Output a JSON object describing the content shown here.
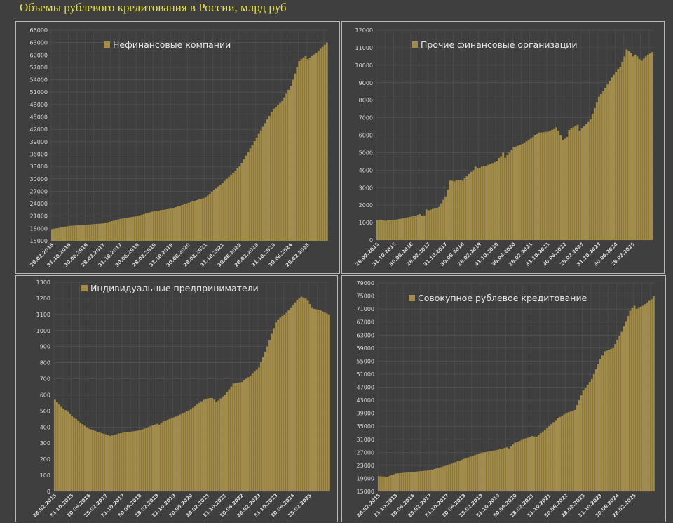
{
  "title": "Объемы рублевого кредитования в России, млрд руб",
  "colors": {
    "bar": "#a28c48",
    "title": "#e4e23c",
    "background": "#3f3f3f",
    "grid": "#545454"
  },
  "chart_data": [
    {
      "type": "bar",
      "legend": "Нефинансовые компании",
      "legend_position": "top-left",
      "ylim": [
        15000,
        66000
      ],
      "yticks": [
        15000,
        18000,
        21000,
        24000,
        27000,
        30000,
        33000,
        36000,
        39000,
        42000,
        45000,
        48000,
        51000,
        54000,
        57000,
        60000,
        63000,
        66000
      ],
      "xtick_labels": [
        "28.02.2015",
        "31.10.2015",
        "30.06.2016",
        "28.02.2017",
        "31.10.2017",
        "30.06.2018",
        "28.02.2019",
        "31.10.2019",
        "30.06.2020",
        "28.02.2021",
        "31.10.2021",
        "30.06.2022",
        "28.02.2023",
        "31.10.2023",
        "30.06.2024",
        "28.02.2025"
      ],
      "xtick_every_months": 8,
      "values": [
        17800,
        17900,
        18000,
        18100,
        18200,
        18300,
        18400,
        18500,
        18600,
        18640,
        18680,
        18720,
        18760,
        18800,
        18840,
        18870,
        18900,
        18940,
        18970,
        19010,
        19050,
        19090,
        19120,
        19160,
        19200,
        19340,
        19480,
        19620,
        19750,
        19890,
        20020,
        20160,
        20300,
        20390,
        20480,
        20560,
        20650,
        20740,
        20820,
        20910,
        21000,
        21150,
        21300,
        21450,
        21600,
        21750,
        21900,
        22050,
        22200,
        22280,
        22350,
        22430,
        22500,
        22580,
        22650,
        22730,
        22800,
        22980,
        23150,
        23330,
        23500,
        23680,
        23850,
        24030,
        24200,
        24360,
        24530,
        24690,
        24850,
        25010,
        25180,
        25340,
        25500,
        25940,
        26380,
        26810,
        27250,
        27690,
        28130,
        28560,
        29000,
        29500,
        30000,
        30500,
        31000,
        31500,
        32000,
        32500,
        33000,
        33880,
        34750,
        35630,
        36500,
        37380,
        38250,
        39130,
        40000,
        40880,
        41750,
        42630,
        43500,
        44380,
        45250,
        46130,
        47000,
        47450,
        47900,
        48350,
        48800,
        49730,
        50650,
        51580,
        52500,
        54000,
        55500,
        57000,
        58500,
        59000,
        59400,
        59700,
        59000,
        59380,
        59750,
        60130,
        60500,
        61000,
        61500,
        62000,
        62500,
        63000
      ]
    },
    {
      "type": "bar",
      "legend": "Прочие финансовые организации",
      "legend_position": "top-left",
      "ylim": [
        0,
        12000
      ],
      "yticks": [
        0,
        1000,
        2000,
        3000,
        4000,
        5000,
        6000,
        7000,
        8000,
        9000,
        10000,
        11000,
        12000
      ],
      "xtick_labels": [
        "28.02.2015",
        "31.10.2015",
        "30.06.2016",
        "28.02.2017",
        "31.10.2017",
        "30.06.2018",
        "28.02.2019",
        "31.10.2019",
        "30.06.2020",
        "28.02.2021",
        "31.10.2021",
        "30.06.2022",
        "28.02.2023",
        "31.10.2023",
        "30.06.2024",
        "28.02.2025"
      ],
      "xtick_every_months": 8,
      "values": [
        1150,
        1160,
        1140,
        1120,
        1100,
        1130,
        1140,
        1150,
        1150,
        1170,
        1200,
        1220,
        1240,
        1270,
        1300,
        1320,
        1350,
        1400,
        1380,
        1450,
        1480,
        1400,
        1420,
        1750,
        1700,
        1740,
        1780,
        1810,
        1850,
        1900,
        2100,
        2300,
        2500,
        2900,
        3400,
        3400,
        3350,
        3450,
        3450,
        3420,
        3400,
        3530,
        3650,
        3780,
        3900,
        4000,
        4200,
        4100,
        4100,
        4200,
        4250,
        4250,
        4300,
        4350,
        4400,
        4450,
        4500,
        4700,
        4800,
        5000,
        4700,
        4850,
        5000,
        5150,
        5300,
        5350,
        5400,
        5450,
        5500,
        5580,
        5650,
        5730,
        5800,
        5890,
        5980,
        6060,
        6150,
        6160,
        6170,
        6190,
        6200,
        6250,
        6300,
        6350,
        6450,
        6250,
        6000,
        5700,
        5800,
        5900,
        6300,
        6380,
        6450,
        6530,
        6600,
        6250,
        6380,
        6500,
        6630,
        6750,
        6900,
        7230,
        7550,
        7880,
        8200,
        8350,
        8500,
        8700,
        8900,
        9100,
        9300,
        9450,
        9600,
        9750,
        9900,
        10200,
        10500,
        10900,
        10800,
        10700,
        10500,
        10600,
        10500,
        10350,
        10250,
        10380,
        10500,
        10580,
        10670,
        10750
      ]
    },
    {
      "type": "bar",
      "legend": "Индивидуальные предприниматели",
      "legend_position": "top-left",
      "ylim": [
        0,
        1300
      ],
      "yticks": [
        0,
        100,
        200,
        300,
        400,
        500,
        600,
        700,
        800,
        900,
        1000,
        1100,
        1200,
        1300
      ],
      "xtick_labels": [
        "28.02.2015",
        "31.10.2015",
        "30.06.2016",
        "28.02.2017",
        "31.10.2017",
        "30.06.2018",
        "28.02.2019",
        "31.10.2019",
        "30.06.2020",
        "28.02.2021",
        "31.10.2021",
        "30.06.2022",
        "28.02.2023",
        "31.10.2023",
        "30.06.2024",
        "28.02.2025"
      ],
      "xtick_every_months": 8,
      "values": [
        570,
        555,
        540,
        525,
        515,
        505,
        495,
        480,
        470,
        460,
        450,
        440,
        428,
        418,
        408,
        398,
        390,
        385,
        380,
        375,
        370,
        366,
        362,
        358,
        355,
        350,
        345,
        348,
        352,
        356,
        360,
        362,
        365,
        367,
        368,
        370,
        372,
        374,
        376,
        378,
        380,
        385,
        390,
        395,
        400,
        405,
        410,
        415,
        420,
        415,
        425,
        435,
        440,
        445,
        450,
        455,
        460,
        465,
        472,
        478,
        485,
        490,
        497,
        503,
        510,
        520,
        530,
        540,
        550,
        560,
        570,
        575,
        578,
        580,
        580,
        570,
        555,
        565,
        578,
        590,
        600,
        618,
        635,
        652,
        670,
        672,
        675,
        678,
        680,
        690,
        700,
        710,
        720,
        732,
        745,
        757,
        770,
        802,
        835,
        868,
        900,
        940,
        980,
        1015,
        1050,
        1065,
        1080,
        1090,
        1100,
        1110,
        1125,
        1140,
        1160,
        1175,
        1190,
        1200,
        1210,
        1205,
        1200,
        1185,
        1165,
        1140,
        1135,
        1132,
        1130,
        1125,
        1118,
        1112,
        1106,
        1100
      ]
    },
    {
      "type": "bar",
      "legend": "Совокупное рублевое кредитование",
      "legend_position": "top-left",
      "ylim": [
        15000,
        79000
      ],
      "yticks": [
        15000,
        19000,
        23000,
        27000,
        31000,
        35000,
        39000,
        43000,
        47000,
        51000,
        55000,
        59000,
        63000,
        67000,
        71000,
        75000,
        79000
      ],
      "xtick_labels": [
        "28.02.2015",
        "31.10.2015",
        "30.06.2016",
        "28.02.2017",
        "31.10.2017",
        "30.06.2018",
        "28.02.2019",
        "31.10.2019",
        "30.06.2020",
        "28.02.2021",
        "31.10.2021",
        "30.06.2022",
        "28.02.2023",
        "31.10.2023",
        "30.06.2024",
        "28.02.2025"
      ],
      "xtick_every_months": 8,
      "values": [
        19700,
        19650,
        19600,
        19550,
        19500,
        19750,
        20000,
        20250,
        20500,
        20560,
        20620,
        20690,
        20750,
        20810,
        20880,
        20940,
        21000,
        21060,
        21120,
        21190,
        21250,
        21310,
        21380,
        21440,
        21500,
        21690,
        21880,
        22060,
        22250,
        22440,
        22630,
        22810,
        23000,
        23250,
        23500,
        23750,
        24000,
        24250,
        24500,
        24750,
        25000,
        25230,
        25450,
        25680,
        25900,
        26130,
        26350,
        26580,
        26800,
        26930,
        27050,
        27180,
        27300,
        27430,
        27550,
        27680,
        27800,
        27980,
        28150,
        28330,
        28500,
        28200,
        28800,
        29400,
        30000,
        30250,
        30500,
        30750,
        31000,
        31250,
        31500,
        31750,
        32000,
        31900,
        31800,
        32330,
        32870,
        33400,
        33930,
        34470,
        35000,
        35630,
        36250,
        36880,
        37500,
        37880,
        38250,
        38630,
        39000,
        39250,
        39500,
        39750,
        40000,
        41500,
        43000,
        44500,
        46000,
        46880,
        47750,
        48630,
        49500,
        51000,
        52500,
        54000,
        55500,
        56750,
        58000,
        58250,
        58500,
        58750,
        59000,
        60250,
        61500,
        62750,
        64000,
        65630,
        67250,
        68880,
        70500,
        71250,
        72000,
        71000,
        71330,
        71670,
        72000,
        72500,
        73000,
        73500,
        74000,
        75000
      ]
    }
  ]
}
